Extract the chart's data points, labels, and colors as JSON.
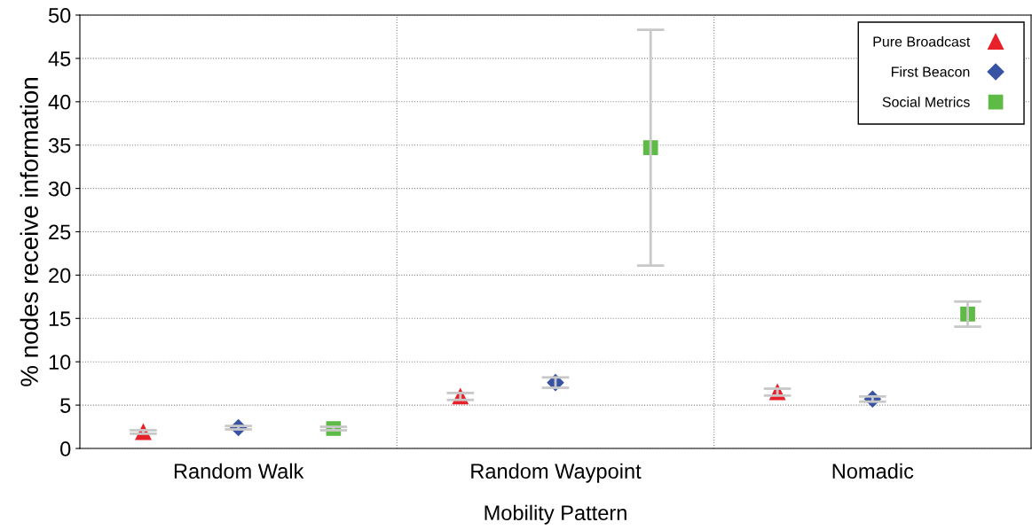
{
  "chart_data": {
    "type": "scatter",
    "xlabel": "Mobility Pattern",
    "ylabel": "% nodes receive information",
    "categories": [
      "Random Walk",
      "Random Waypoint",
      "Nomadic"
    ],
    "series": [
      {
        "name": "Pure Broadcast",
        "color": "#e8202a",
        "marker": "triangle",
        "values": [
          1.9,
          6.0,
          6.5
        ],
        "errors": [
          0.2,
          0.4,
          0.4
        ]
      },
      {
        "name": "First Beacon",
        "color": "#3953a4",
        "marker": "diamond",
        "values": [
          2.4,
          7.6,
          5.7
        ],
        "errors": [
          0.2,
          0.6,
          0.3
        ]
      },
      {
        "name": "Social Metrics",
        "color": "#5dbb46",
        "marker": "square",
        "values": [
          2.3,
          34.7,
          15.5
        ],
        "errors": [
          0.2,
          13.6,
          1.45
        ]
      }
    ],
    "ylim": [
      0,
      50
    ],
    "yticks": [
      0,
      5,
      10,
      15,
      20,
      25,
      30,
      35,
      40,
      45,
      50
    ],
    "grid": true,
    "legend": "top right"
  }
}
